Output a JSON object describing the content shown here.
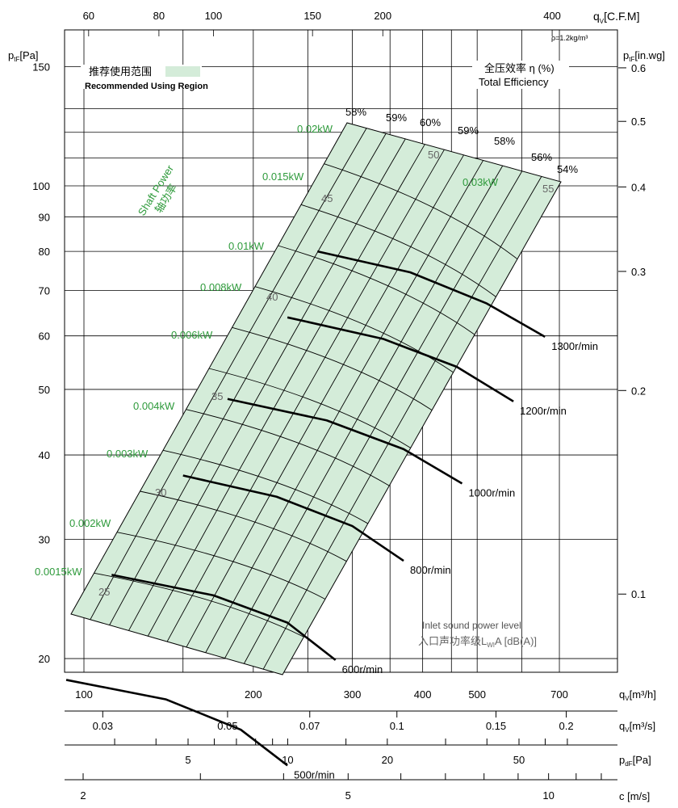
{
  "chart_data": {
    "type": "line",
    "title": "",
    "x_axes": {
      "top": {
        "label_q": "q",
        "label_sub": "V",
        "label_unit": "[C.F.M]",
        "ticks": [
          60,
          80,
          100,
          150,
          200,
          400
        ]
      },
      "bottom": {
        "label": "q",
        "label_sub": "V",
        "label_unit": "[m³/h]",
        "ticks": [
          100,
          200,
          300,
          400,
          500,
          700
        ]
      },
      "m3s": {
        "label": "q",
        "label_sub": "V",
        "label_unit": "[m³/s]",
        "ticks": [
          0.03,
          0.05,
          0.07,
          0.1,
          0.15,
          0.2
        ]
      },
      "pdf": {
        "label": "p",
        "label_sub": "dF",
        "label_unit": "[Pa]",
        "ticks": [
          5,
          10,
          20,
          50
        ]
      },
      "velocity": {
        "label": "c [m/s]",
        "ticks": [
          2,
          5,
          10
        ]
      }
    },
    "y_axes": {
      "left": {
        "label": "p",
        "label_sub": "tF",
        "label_unit": "[Pa]",
        "ticks": [
          20,
          30,
          40,
          50,
          60,
          70,
          80,
          90,
          100,
          150
        ]
      },
      "right": {
        "label": "p",
        "label_sub": "tF",
        "label_unit": "[in.wg]",
        "ticks": [
          0.1,
          0.2,
          0.3,
          0.4,
          0.5,
          0.6
        ]
      }
    },
    "density_note": "ρ=1.2kg/m³",
    "legend": {
      "cn": "推荐使用范围",
      "en": "Recommended Using Region",
      "region_color": "#d4ecd9"
    },
    "efficiency_label": {
      "cn": "全压效率 η (%)",
      "en": "Total Efficiency"
    },
    "shaft_power_label": {
      "en": "Shaft Power",
      "cn": "轴功率"
    },
    "sound_label": {
      "en": "Inlet sound power level",
      "cn": "入口声功率级L",
      "sub": "WI",
      "tail": "A [dB(A)]"
    },
    "speed_curves": [
      {
        "label": "500r/min",
        "x": [
          93,
          140,
          190,
          230
        ],
        "y": [
          18.6,
          17.4,
          15.7,
          13.9
        ]
      },
      {
        "label": "600r/min",
        "x": [
          112,
          170,
          230,
          280
        ],
        "y": [
          26.6,
          24.8,
          22.6,
          19.9
        ]
      },
      {
        "label": "800r/min",
        "x": [
          150,
          220,
          300,
          370
        ],
        "y": [
          37.3,
          34.7,
          31.4,
          27.9
        ]
      },
      {
        "label": "1000r/min",
        "x": [
          180,
          270,
          370,
          470
        ],
        "y": [
          48.4,
          45.0,
          40.8,
          36.3
        ]
      },
      {
        "label": "1200r/min",
        "x": [
          230,
          340,
          460,
          580
        ],
        "y": [
          63.9,
          59.4,
          54.0,
          48.0
        ]
      },
      {
        "label": "1300r/min",
        "x": [
          260,
          380,
          520,
          660
        ],
        "y": [
          80.0,
          74.5,
          67.0,
          59.8
        ]
      }
    ],
    "efficiency_ticks": [
      "58%",
      "59%",
      "60%",
      "59%",
      "58%",
      "56%",
      "54%"
    ],
    "power_labels": [
      "0.0015kW",
      "0.002kW",
      "0.003kW",
      "0.004kW",
      "0.006kW",
      "0.008kW",
      "0.01kW",
      "0.015kW",
      "0.02kW",
      "0.03kW"
    ],
    "sound_levels": [
      "25",
      "30",
      "35",
      "40",
      "45",
      "50",
      "55"
    ],
    "colors": {
      "power": "#2e9a3b",
      "sound": "#666666",
      "curve": "#000000",
      "grid": "#000000"
    }
  }
}
